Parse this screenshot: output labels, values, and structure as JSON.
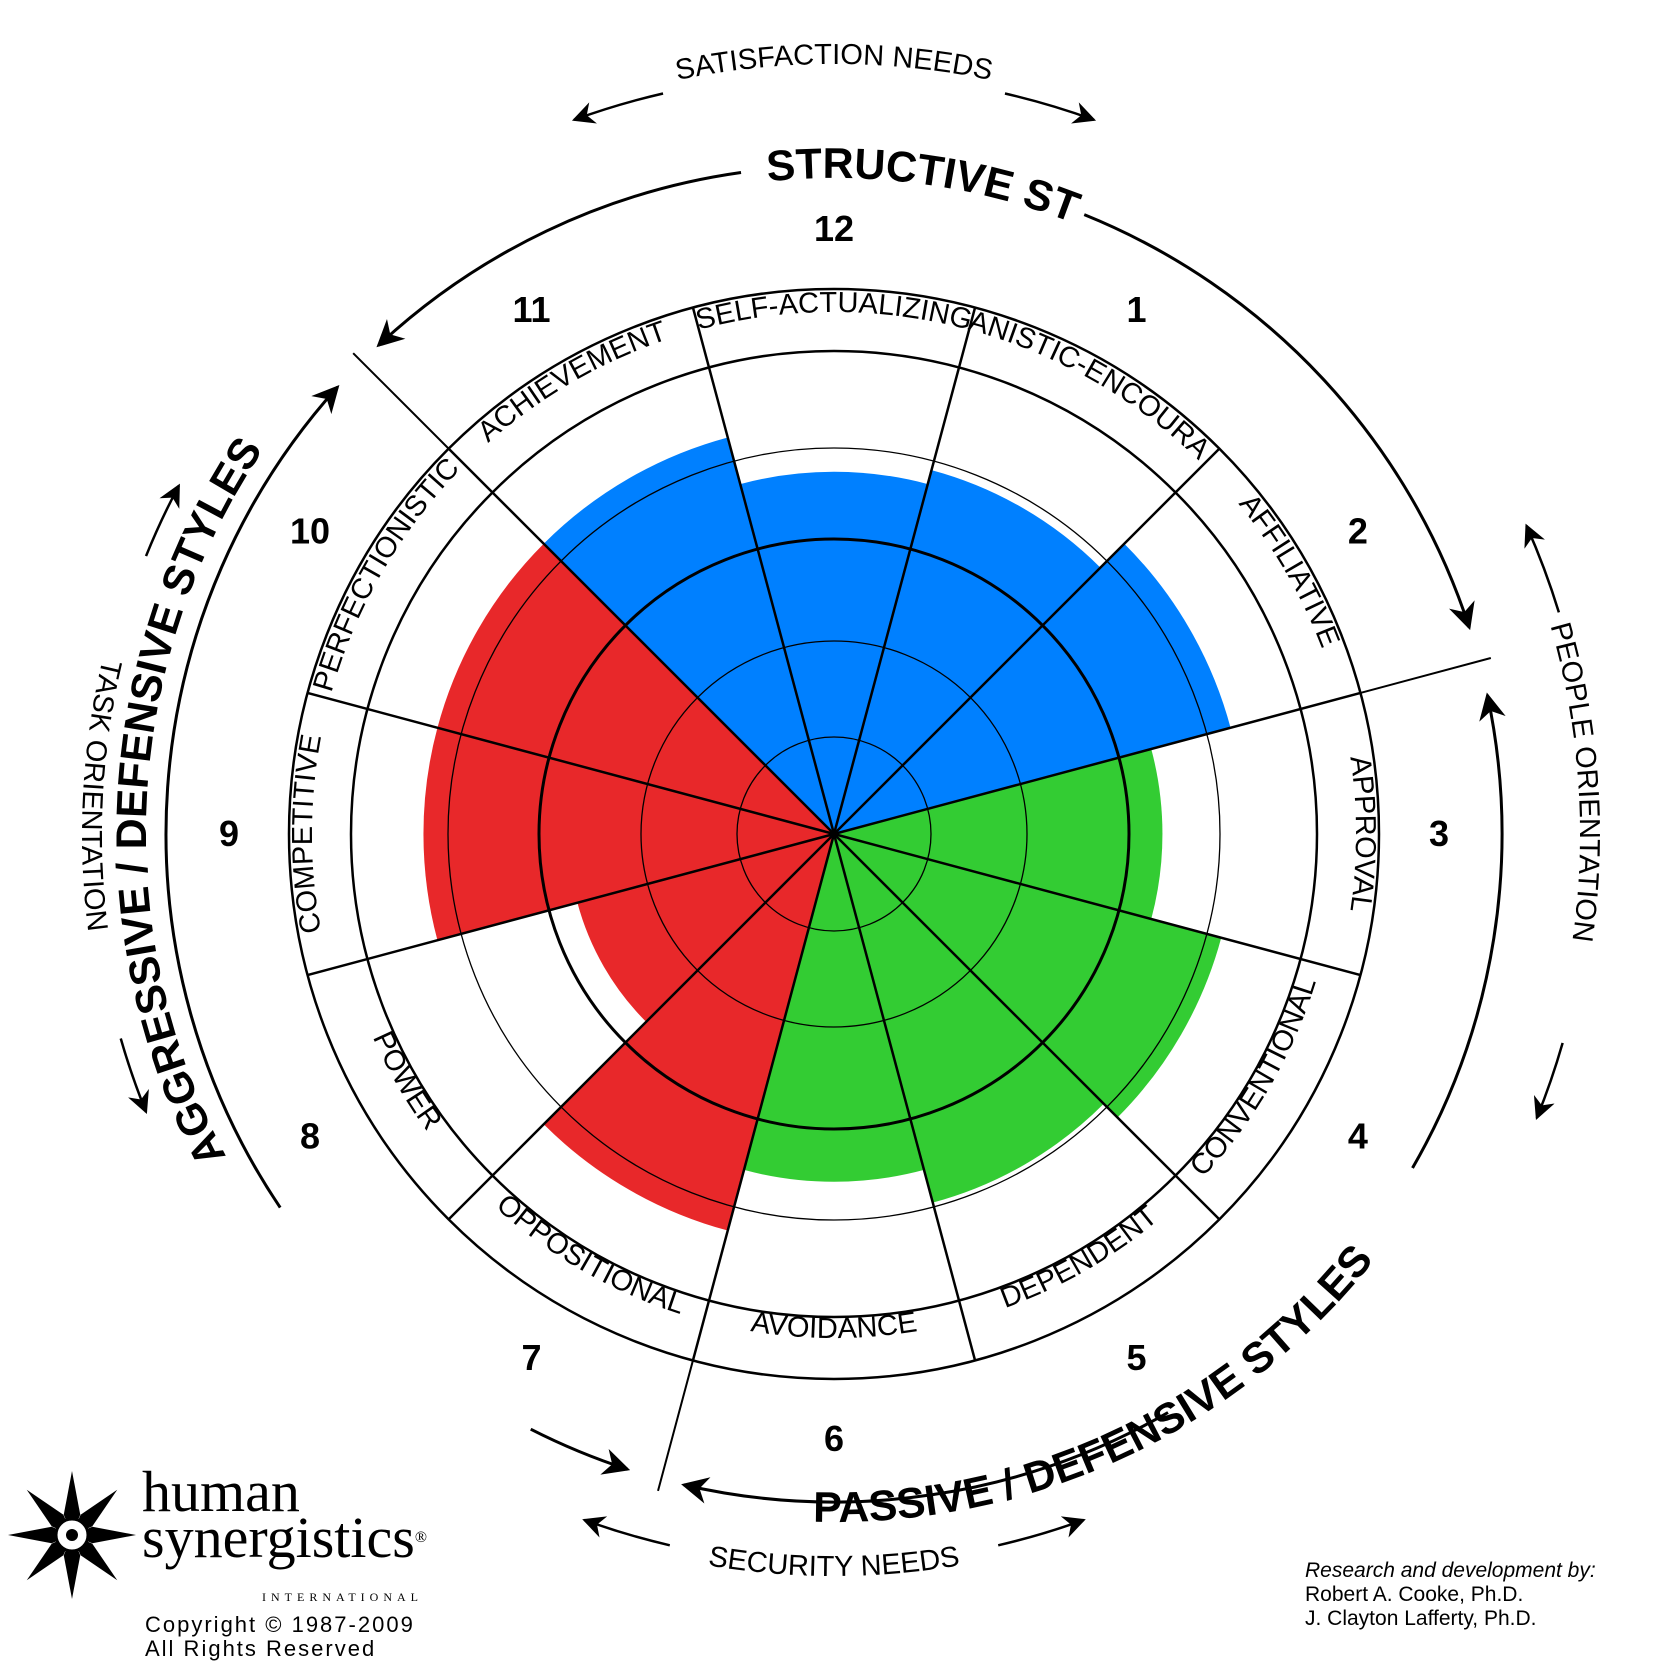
{
  "styles": [
    {
      "num": "1",
      "label": "HUMANISTIC-ENCOURAGING",
      "level": 0.78,
      "color": "#0080ff"
    },
    {
      "num": "2",
      "label": "AFFILIATIVE",
      "level": 0.85,
      "color": "#0080ff"
    },
    {
      "num": "3",
      "label": "APPROVAL",
      "level": 0.68,
      "color": "#33cc33"
    },
    {
      "num": "4",
      "label": "CONVENTIONAL",
      "level": 0.83,
      "color": "#33cc33"
    },
    {
      "num": "5",
      "label": "DEPENDENT",
      "level": 0.79,
      "color": "#33cc33"
    },
    {
      "num": "6",
      "label": "AVOIDANCE",
      "level": 0.72,
      "color": "#33cc33"
    },
    {
      "num": "7",
      "label": "OPPOSITIONAL",
      "level": 0.85,
      "color": "#e8282a"
    },
    {
      "num": "8",
      "label": "POWER",
      "level": 0.55,
      "color": "#e8282a"
    },
    {
      "num": "9",
      "label": "COMPETITIVE",
      "level": 0.85,
      "color": "#e8282a"
    },
    {
      "num": "10",
      "label": "PERFECTIONISTIC",
      "level": 0.85,
      "color": "#e8282a"
    },
    {
      "num": "11",
      "label": "ACHIEVEMENT",
      "level": 0.85,
      "color": "#0080ff"
    },
    {
      "num": "12",
      "label": "SELF-ACTUALIZING",
      "level": 0.75,
      "color": "#0080ff"
    }
  ],
  "groups": {
    "constructive": "CONSTRUCTIVE STYLES",
    "passive": "PASSIVE / DEFENSIVE STYLES",
    "aggressive": "AGGRESSIVE / DEFENSIVE STYLES"
  },
  "axes": {
    "top": "SATISFACTION NEEDS",
    "bottom": "SECURITY NEEDS",
    "left": "TASK ORIENTATION",
    "right": "PEOPLE ORIENTATION"
  },
  "branding": {
    "name_line1": "human",
    "name_line2": "synergistics",
    "registered": "®",
    "international": "INTERNATIONAL",
    "copyright": "Copyright © 1987-2009",
    "rights": "All Rights Reserved"
  },
  "credits": {
    "heading": "Research and development by:",
    "author1": "Robert A. Cooke, Ph.D.",
    "author2": "J. Clayton Lafferty, Ph.D."
  }
}
